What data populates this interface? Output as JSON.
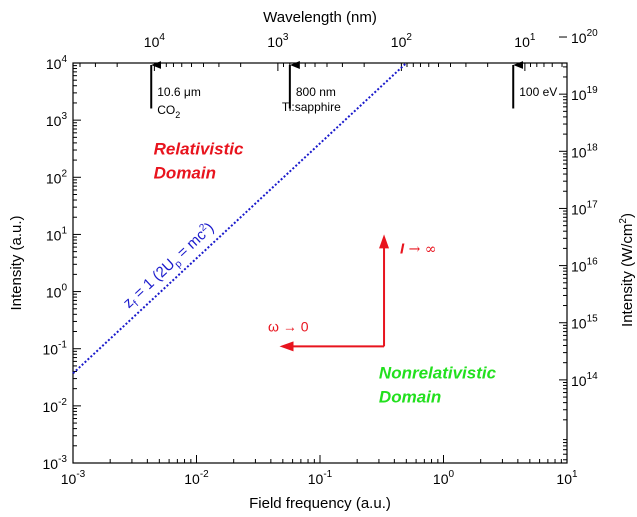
{
  "chart_data": {
    "type": "line",
    "xlabel": "Field frequency (a.u.)",
    "ylabel": "Intensity (a.u.)",
    "top_xlabel": "Wavelength (nm)",
    "right_ylabel": "Intensity (W/cm2)",
    "x_scale": "log",
    "y_scale": "log",
    "xlim": [
      0.001,
      10
    ],
    "ylim": [
      0.001,
      10000
    ],
    "x_ticks": [
      {
        "value": 0.001,
        "base": "10",
        "exp": "-3"
      },
      {
        "value": 0.01,
        "base": "10",
        "exp": "-2"
      },
      {
        "value": 0.1,
        "base": "10",
        "exp": "-1"
      },
      {
        "value": 1,
        "base": "10",
        "exp": "0"
      },
      {
        "value": 10,
        "base": "10",
        "exp": "1"
      }
    ],
    "y_ticks": [
      {
        "value": 0.001,
        "base": "10",
        "exp": "-3"
      },
      {
        "value": 0.01,
        "base": "10",
        "exp": "-2"
      },
      {
        "value": 0.1,
        "base": "10",
        "exp": "-1"
      },
      {
        "value": 1,
        "base": "10",
        "exp": "0"
      },
      {
        "value": 10,
        "base": "10",
        "exp": "1"
      },
      {
        "value": 100,
        "base": "10",
        "exp": "2"
      },
      {
        "value": 1000,
        "base": "10",
        "exp": "3"
      },
      {
        "value": 10000,
        "base": "10",
        "exp": "4"
      }
    ],
    "top_ticks": [
      {
        "freq": 0.00456,
        "base": "10",
        "exp": "4"
      },
      {
        "freq": 0.0456,
        "base": "10",
        "exp": "3"
      },
      {
        "freq": 0.456,
        "base": "10",
        "exp": "2"
      },
      {
        "freq": 4.56,
        "base": "10",
        "exp": "1"
      }
    ],
    "right_ticks": [
      {
        "intensity_au": 0.02849,
        "base": "10",
        "exp": "14"
      },
      {
        "intensity_au": 0.2849,
        "base": "10",
        "exp": "15"
      },
      {
        "intensity_au": 2.849,
        "base": "10",
        "exp": "16"
      },
      {
        "intensity_au": 28.49,
        "base": "10",
        "exp": "17"
      },
      {
        "intensity_au": 284.9,
        "base": "10",
        "exp": "18"
      },
      {
        "intensity_au": 2849,
        "base": "10",
        "exp": "19"
      },
      {
        "intensity_au": 28490,
        "base": "10",
        "exp": "20"
      }
    ],
    "series": [
      {
        "name": "z_f = 1 (2U_p = mc^2)",
        "color": "#1a1acc",
        "style": "dotted",
        "x": [
          0.001,
          0.5
        ],
        "y": [
          0.037,
          10000
        ]
      }
    ],
    "series_label": {
      "z_f": "z",
      "sub_f": "f",
      "mid": " = 1 (2U",
      "sub_p": "p",
      "tail": " = mc",
      "sup_2": "2",
      "close": ")",
      "x": 0.0063,
      "y": 2.5
    },
    "markers": [
      {
        "freq": 0.0043,
        "line1": "10.6 μm",
        "line2_base": "CO",
        "line2_sub": "2",
        "intensity_top": 10000,
        "intensity_bottom": 1600
      },
      {
        "freq": 0.057,
        "line1": "800 nm",
        "line2": "Ti:sapphire",
        "intensity_top": 10000,
        "intensity_bottom": 1600
      },
      {
        "freq": 3.67,
        "line1": "100 eV",
        "intensity_top": 10000,
        "intensity_bottom": 1600
      }
    ],
    "domains": [
      {
        "line1": "Relativistic",
        "line2": "Domain",
        "color": "#e8141e",
        "x": 0.0045,
        "y": 250
      },
      {
        "line1": "Nonrelativistic",
        "line2": "Domain",
        "color": "#22e01e",
        "x": 0.3,
        "y": 0.03
      }
    ],
    "limit_arrows": {
      "color": "#e8141e",
      "corner_x": 0.33,
      "corner_y": 0.11,
      "up_to_y": 10,
      "left_to_x": 0.047,
      "up_label": "I → ∞",
      "left_label": "ω → 0"
    }
  }
}
